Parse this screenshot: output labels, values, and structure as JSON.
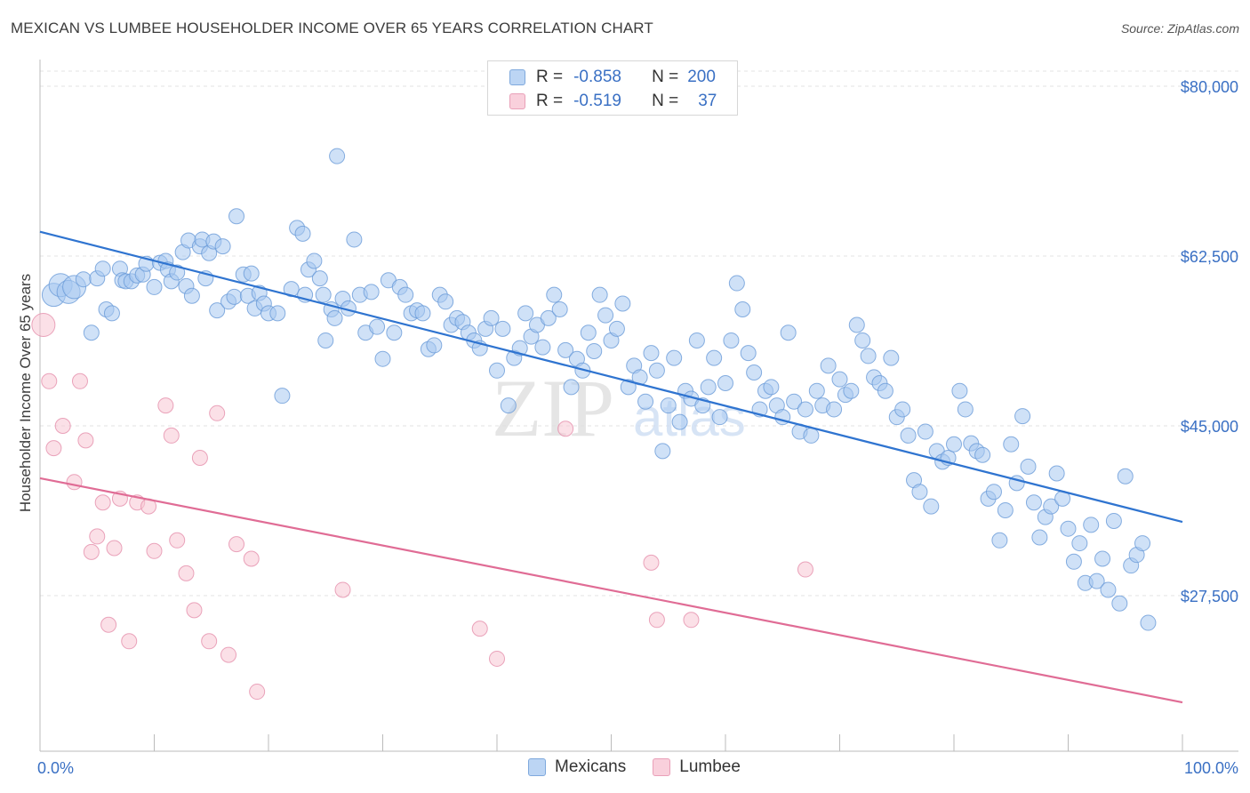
{
  "header": {
    "title": "MEXICAN VS LUMBEE HOUSEHOLDER INCOME OVER 65 YEARS CORRELATION CHART",
    "source": "Source: ZipAtlas.com"
  },
  "watermark": {
    "part1": "ZIP",
    "part2": "atlas"
  },
  "legend": {
    "r_label": "R =",
    "n_label": "N =",
    "rows": [
      {
        "r": "-0.858",
        "n": "200",
        "color": "#a8c8f0"
      },
      {
        "r": "-0.519",
        "n": "37",
        "color": "#f5b8cb"
      }
    ]
  },
  "bottom_legend": {
    "items": [
      "Mexicans",
      "Lumbee"
    ]
  },
  "colors": {
    "mexicans_fill": "#a8c8f0",
    "mexicans_stroke": "#6a9bd8",
    "mexicans_line": "#2f74d0",
    "lumbee_fill": "#f7c6d4",
    "lumbee_stroke": "#e58fab",
    "lumbee_line": "#e06c95",
    "axis_text": "#3a70c4",
    "grid": "#e3e3e3"
  },
  "chart_data": {
    "type": "scatter",
    "title": "MEXICAN VS LUMBEE HOUSEHOLDER INCOME OVER 65 YEARS CORRELATION CHART",
    "xlabel": "",
    "ylabel": "Householder Income Over 65 years",
    "xlim": [
      0,
      100
    ],
    "ylim": [
      10000,
      82000
    ],
    "x_tick_labels": [
      "0.0%",
      "100.0%"
    ],
    "y_ticks": [
      27500,
      45000,
      62500,
      80000
    ],
    "y_tick_labels": [
      "$27,500",
      "$45,000",
      "$62,500",
      "$80,000"
    ],
    "grid": true,
    "legend_position": "top-center",
    "series": [
      {
        "name": "Mexicans",
        "r": -0.858,
        "n": 200,
        "trend": {
          "x": [
            0,
            100
          ],
          "y": [
            65000,
            35100
          ]
        },
        "points": [
          [
            1.2,
            58.5
          ],
          [
            1.8,
            59.5
          ],
          [
            2.5,
            58.8
          ],
          [
            3.0,
            59.3
          ],
          [
            3.8,
            60.1
          ],
          [
            4.5,
            54.6
          ],
          [
            5.0,
            60.2
          ],
          [
            5.5,
            61.2
          ],
          [
            5.8,
            57.0
          ],
          [
            6.3,
            56.6
          ],
          [
            7.0,
            61.2
          ],
          [
            7.2,
            60.0
          ],
          [
            7.5,
            59.9
          ],
          [
            8.0,
            59.9
          ],
          [
            8.5,
            60.5
          ],
          [
            9.0,
            60.6
          ],
          [
            9.3,
            61.7
          ],
          [
            10.0,
            59.3
          ],
          [
            10.5,
            61.8
          ],
          [
            11.0,
            62.0
          ],
          [
            11.2,
            61.1
          ],
          [
            11.5,
            59.9
          ],
          [
            12.0,
            60.8
          ],
          [
            12.5,
            62.9
          ],
          [
            12.8,
            59.4
          ],
          [
            13.0,
            64.1
          ],
          [
            13.3,
            58.4
          ],
          [
            14.0,
            63.5
          ],
          [
            14.2,
            64.2
          ],
          [
            14.5,
            60.2
          ],
          [
            14.8,
            62.8
          ],
          [
            15.2,
            64.0
          ],
          [
            15.5,
            56.9
          ],
          [
            16.0,
            63.5
          ],
          [
            16.5,
            57.8
          ],
          [
            17.0,
            58.3
          ],
          [
            17.2,
            66.6
          ],
          [
            17.8,
            60.6
          ],
          [
            18.2,
            58.4
          ],
          [
            18.5,
            60.7
          ],
          [
            18.8,
            57.1
          ],
          [
            19.2,
            58.7
          ],
          [
            19.6,
            57.6
          ],
          [
            20.0,
            56.6
          ],
          [
            20.8,
            56.6
          ],
          [
            21.2,
            48.1
          ],
          [
            22.0,
            59.1
          ],
          [
            22.5,
            65.4
          ],
          [
            23.0,
            64.8
          ],
          [
            23.2,
            58.5
          ],
          [
            23.5,
            61.1
          ],
          [
            24.0,
            62.0
          ],
          [
            24.5,
            60.2
          ],
          [
            24.8,
            58.5
          ],
          [
            25.0,
            53.8
          ],
          [
            25.5,
            57.0
          ],
          [
            25.8,
            56.1
          ],
          [
            26.0,
            72.8
          ],
          [
            26.5,
            58.1
          ],
          [
            27.0,
            57.1
          ],
          [
            27.5,
            64.2
          ],
          [
            28.0,
            58.5
          ],
          [
            28.5,
            54.6
          ],
          [
            29.0,
            58.8
          ],
          [
            29.5,
            55.2
          ],
          [
            30.0,
            51.9
          ],
          [
            30.5,
            60.0
          ],
          [
            31.0,
            54.6
          ],
          [
            31.5,
            59.3
          ],
          [
            32.0,
            58.5
          ],
          [
            32.5,
            56.6
          ],
          [
            33.0,
            56.9
          ],
          [
            33.5,
            56.6
          ],
          [
            34.0,
            52.9
          ],
          [
            34.5,
            53.3
          ],
          [
            35.0,
            58.5
          ],
          [
            35.5,
            57.8
          ],
          [
            36.0,
            55.4
          ],
          [
            36.5,
            56.1
          ],
          [
            37.0,
            55.7
          ],
          [
            37.5,
            54.6
          ],
          [
            38.0,
            53.8
          ],
          [
            38.5,
            53.0
          ],
          [
            39.0,
            55.0
          ],
          [
            39.5,
            56.1
          ],
          [
            40.0,
            50.7
          ],
          [
            40.5,
            55.0
          ],
          [
            41.0,
            47.1
          ],
          [
            41.5,
            52.0
          ],
          [
            42.0,
            53.0
          ],
          [
            42.5,
            56.6
          ],
          [
            43.0,
            54.2
          ],
          [
            43.5,
            55.4
          ],
          [
            44.0,
            53.1
          ],
          [
            44.5,
            56.1
          ],
          [
            45.0,
            58.5
          ],
          [
            45.5,
            57.0
          ],
          [
            46.0,
            52.8
          ],
          [
            46.5,
            49.0
          ],
          [
            47.0,
            51.9
          ],
          [
            47.5,
            50.7
          ],
          [
            48.0,
            54.6
          ],
          [
            48.5,
            52.7
          ],
          [
            49.0,
            58.5
          ],
          [
            49.5,
            56.4
          ],
          [
            50.0,
            53.8
          ],
          [
            50.5,
            55.0
          ],
          [
            51.0,
            57.6
          ],
          [
            51.5,
            49.0
          ],
          [
            52.0,
            51.2
          ],
          [
            52.5,
            50.0
          ],
          [
            53.0,
            47.5
          ],
          [
            53.5,
            52.5
          ],
          [
            54.0,
            50.7
          ],
          [
            54.5,
            42.4
          ],
          [
            55.0,
            47.1
          ],
          [
            55.5,
            52.0
          ],
          [
            56.0,
            45.4
          ],
          [
            56.5,
            48.6
          ],
          [
            57.0,
            47.8
          ],
          [
            57.5,
            53.8
          ],
          [
            58.0,
            47.1
          ],
          [
            58.5,
            49.0
          ],
          [
            59.0,
            52.0
          ],
          [
            59.5,
            45.9
          ],
          [
            60.0,
            49.4
          ],
          [
            60.5,
            53.8
          ],
          [
            61.0,
            59.7
          ],
          [
            61.5,
            57.0
          ],
          [
            62.0,
            52.5
          ],
          [
            62.5,
            50.5
          ],
          [
            63.0,
            46.7
          ],
          [
            63.5,
            48.6
          ],
          [
            64.0,
            49.0
          ],
          [
            64.5,
            47.1
          ],
          [
            65.0,
            45.9
          ],
          [
            65.5,
            54.6
          ],
          [
            66.0,
            47.5
          ],
          [
            66.5,
            44.4
          ],
          [
            67.0,
            46.7
          ],
          [
            67.5,
            44.0
          ],
          [
            68.0,
            48.6
          ],
          [
            68.5,
            47.1
          ],
          [
            69.0,
            51.2
          ],
          [
            69.5,
            46.7
          ],
          [
            70.0,
            49.8
          ],
          [
            70.5,
            48.2
          ],
          [
            71.0,
            48.6
          ],
          [
            71.5,
            55.4
          ],
          [
            72.0,
            53.8
          ],
          [
            72.5,
            52.2
          ],
          [
            73.0,
            50.0
          ],
          [
            73.5,
            49.4
          ],
          [
            74.0,
            48.6
          ],
          [
            74.5,
            52.0
          ],
          [
            75.0,
            45.9
          ],
          [
            75.5,
            46.7
          ],
          [
            76.0,
            44.0
          ],
          [
            76.5,
            39.4
          ],
          [
            77.0,
            38.2
          ],
          [
            77.5,
            44.4
          ],
          [
            78.0,
            36.7
          ],
          [
            78.5,
            42.4
          ],
          [
            79.0,
            41.3
          ],
          [
            79.5,
            41.7
          ],
          [
            80.0,
            43.1
          ],
          [
            80.5,
            48.6
          ],
          [
            81.0,
            46.7
          ],
          [
            81.5,
            43.2
          ],
          [
            82.0,
            42.4
          ],
          [
            82.5,
            42.0
          ],
          [
            83.0,
            37.5
          ],
          [
            83.5,
            38.2
          ],
          [
            84.0,
            33.2
          ],
          [
            84.5,
            36.3
          ],
          [
            85.0,
            43.1
          ],
          [
            85.5,
            39.1
          ],
          [
            86.0,
            46.0
          ],
          [
            86.5,
            40.8
          ],
          [
            87.0,
            37.1
          ],
          [
            87.5,
            33.5
          ],
          [
            88.0,
            35.6
          ],
          [
            88.5,
            36.7
          ],
          [
            89.0,
            40.1
          ],
          [
            89.5,
            37.5
          ],
          [
            90.0,
            34.4
          ],
          [
            90.5,
            31.0
          ],
          [
            91.0,
            32.9
          ],
          [
            91.5,
            28.8
          ],
          [
            92.0,
            34.8
          ],
          [
            92.5,
            29.0
          ],
          [
            93.0,
            31.3
          ],
          [
            93.5,
            28.1
          ],
          [
            94.0,
            35.2
          ],
          [
            94.5,
            26.7
          ],
          [
            95.0,
            39.8
          ],
          [
            95.5,
            30.6
          ],
          [
            96.0,
            31.7
          ],
          [
            96.5,
            32.9
          ],
          [
            97.0,
            24.7
          ]
        ]
      },
      {
        "name": "Lumbee",
        "r": -0.519,
        "n": 37,
        "trend": {
          "x": [
            0,
            100
          ],
          "y": [
            39600,
            16500
          ]
        },
        "points": [
          [
            0.3,
            55.4
          ],
          [
            0.8,
            49.6
          ],
          [
            1.2,
            42.7
          ],
          [
            2.0,
            45.0
          ],
          [
            3.0,
            39.2
          ],
          [
            3.5,
            49.6
          ],
          [
            4.0,
            43.5
          ],
          [
            4.5,
            32.0
          ],
          [
            5.0,
            33.6
          ],
          [
            5.5,
            37.1
          ],
          [
            6.0,
            24.5
          ],
          [
            6.5,
            32.4
          ],
          [
            7.0,
            37.5
          ],
          [
            7.8,
            22.8
          ],
          [
            8.5,
            37.1
          ],
          [
            9.5,
            36.7
          ],
          [
            10.0,
            32.1
          ],
          [
            11.0,
            47.1
          ],
          [
            11.5,
            44.0
          ],
          [
            12.0,
            33.2
          ],
          [
            12.8,
            29.8
          ],
          [
            13.5,
            26.0
          ],
          [
            14.0,
            41.7
          ],
          [
            14.8,
            22.8
          ],
          [
            15.5,
            46.3
          ],
          [
            16.5,
            21.4
          ],
          [
            17.2,
            32.8
          ],
          [
            18.5,
            31.3
          ],
          [
            19.0,
            17.6
          ],
          [
            26.5,
            28.1
          ],
          [
            38.5,
            24.1
          ],
          [
            40.0,
            21.0
          ],
          [
            46.0,
            44.7
          ],
          [
            53.5,
            30.9
          ],
          [
            54.0,
            25.0
          ],
          [
            57.0,
            25.0
          ],
          [
            67.0,
            30.2
          ]
        ]
      }
    ]
  }
}
